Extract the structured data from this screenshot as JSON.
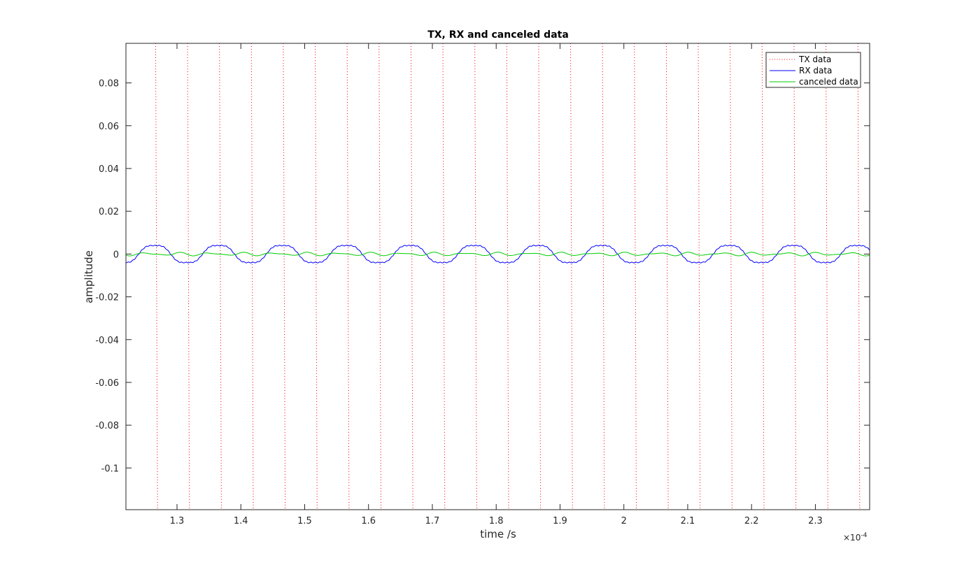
{
  "chart_data": {
    "type": "line",
    "title": "TX, RX and canceled data",
    "xlabel": "time /s",
    "ylabel": "amplitude",
    "x_exponent_label": "×10",
    "x_exponent_power": "-4",
    "xlim": [
      1.22,
      2.385
    ],
    "ylim": [
      -0.1195,
      0.0985
    ],
    "x_ticks": [
      1.3,
      1.4,
      1.5,
      1.6,
      1.7,
      1.8,
      1.9,
      2.0,
      2.1,
      2.2,
      2.3
    ],
    "x_tick_labels": [
      "1.3",
      "1.4",
      "1.5",
      "1.6",
      "1.7",
      "1.8",
      "1.9",
      "2",
      "2.1",
      "2.2",
      "2.3"
    ],
    "y_ticks": [
      0.08,
      0.06,
      0.04,
      0.02,
      0,
      -0.02,
      -0.04,
      -0.06,
      -0.08,
      -0.1
    ],
    "y_tick_labels": [
      "0.08",
      "0.06",
      "0.04",
      "0.02",
      "0",
      "-0.02",
      "-0.04",
      "-0.06",
      "-0.08",
      "-0.1"
    ],
    "grid": false,
    "legend_position": "top-right",
    "series": [
      {
        "name": "TX data",
        "style": "dotted",
        "color": "#ff0000",
        "description": "square-wave transitions extending beyond the visible y range",
        "transitions_rising": [
          1.268,
          1.368,
          1.468,
          1.568,
          1.668,
          1.768,
          1.868,
          1.968,
          2.068,
          2.168,
          2.268,
          2.368
        ],
        "transitions_falling": [
          1.318,
          1.418,
          1.518,
          1.618,
          1.718,
          1.818,
          1.918,
          2.018,
          2.118,
          2.218,
          2.318
        ]
      },
      {
        "name": "RX data",
        "style": "solid",
        "color": "#0000ff",
        "amplitude": 0.0045,
        "period": 0.1,
        "phase_peak_x": 1.265
      },
      {
        "name": "canceled data",
        "style": "solid",
        "color": "#00cc00",
        "amplitude": 0.0008
      }
    ]
  }
}
